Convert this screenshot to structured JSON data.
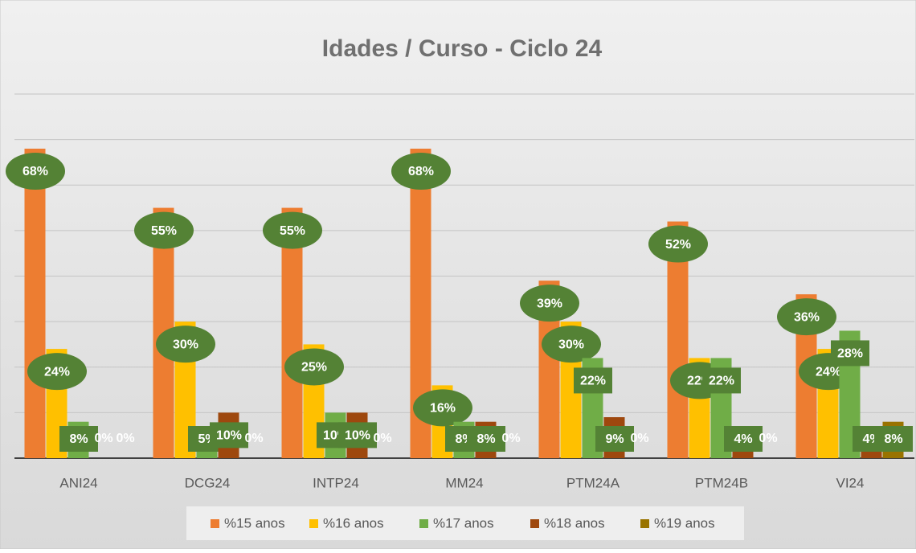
{
  "chart_data": {
    "type": "bar",
    "title": "Idades / Curso - Ciclo 24",
    "categories": [
      "ANI24",
      "DCG24",
      "INTP24",
      "MM24",
      "PTM24A",
      "PTM24B",
      "VI24"
    ],
    "series": [
      {
        "name": "%15 anos",
        "color": "#ED7D31",
        "values": [
          68,
          55,
          55,
          68,
          39,
          52,
          36
        ],
        "value_labels": [
          "68%",
          "55%",
          "55%",
          "68%",
          "39%",
          "52%",
          "36%"
        ]
      },
      {
        "name": "%16 anos",
        "color": "#FFC000",
        "values": [
          24,
          30,
          25,
          16,
          30,
          22,
          24
        ],
        "value_labels": [
          "24%",
          "30%",
          "25%",
          "16%",
          "30%",
          "22%",
          "24%"
        ]
      },
      {
        "name": "%17 anos",
        "color": "#70AD47",
        "values": [
          8,
          5,
          10,
          8,
          22,
          22,
          28
        ],
        "value_labels": [
          "8%",
          "5%",
          "10%",
          "8%",
          "22%",
          "22%",
          "28%"
        ]
      },
      {
        "name": "%18 anos",
        "color": "#9E480E",
        "values": [
          0,
          10,
          10,
          8,
          9,
          4,
          4
        ],
        "value_labels": [
          "0%",
          "10%",
          "10%",
          "8%",
          "9%",
          "4%",
          "4%"
        ]
      },
      {
        "name": "%19 anos",
        "color": "#997300",
        "values": [
          0,
          0,
          0,
          0,
          0,
          0,
          8
        ],
        "value_labels": [
          "0%",
          "0%",
          "0%",
          "0%",
          "0%",
          "0%",
          "8%"
        ]
      }
    ],
    "ylim": [
      0,
      80
    ],
    "yticks": [
      0,
      10,
      20,
      30,
      40,
      50,
      60,
      70,
      80
    ],
    "grid": true,
    "legend": "bottom"
  }
}
